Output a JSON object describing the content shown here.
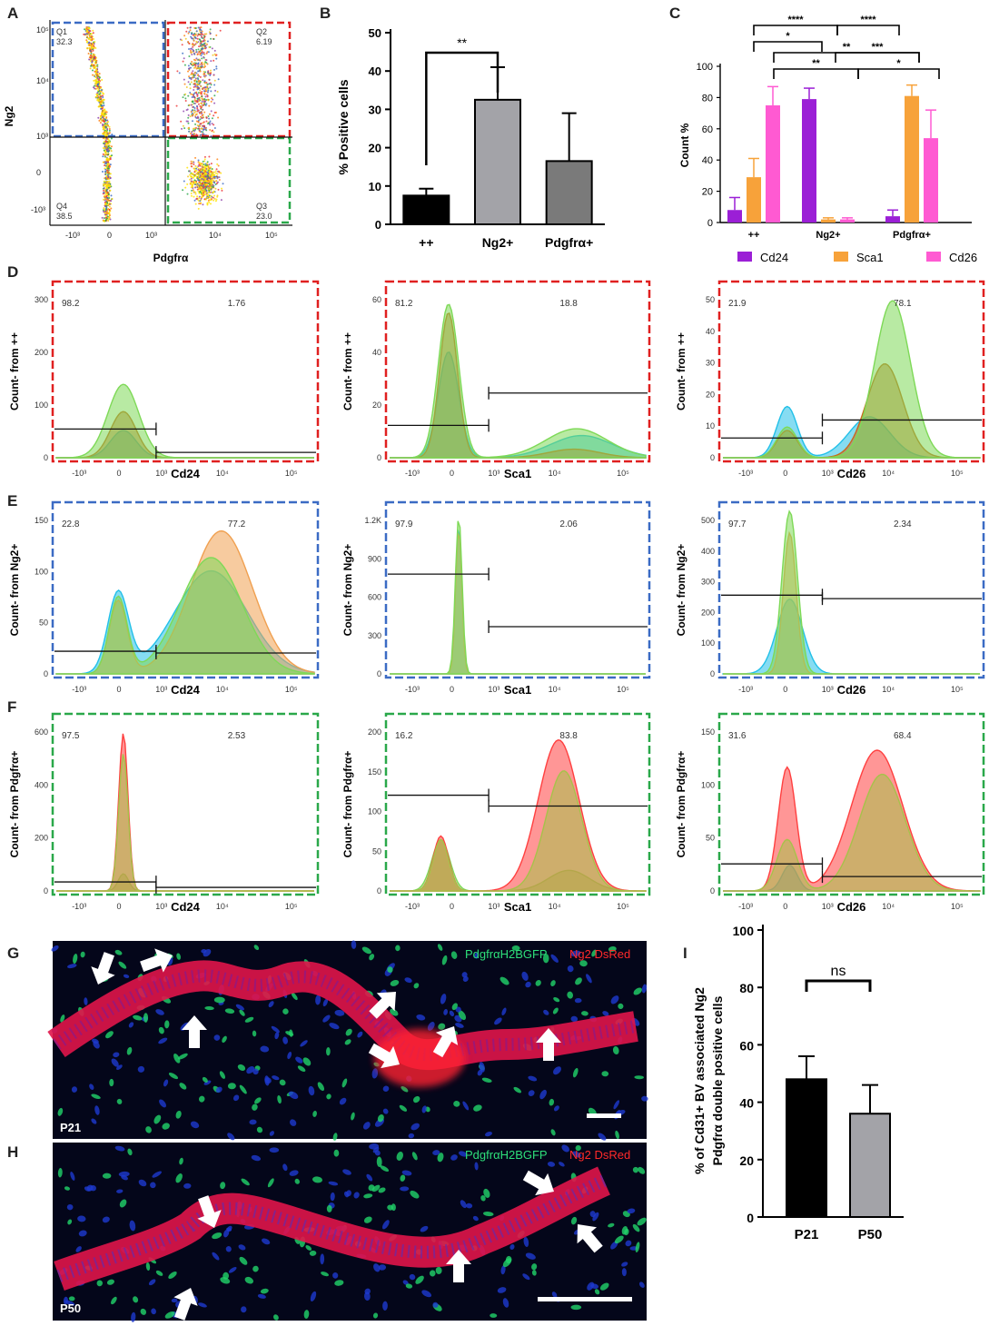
{
  "panel_letters": {
    "A": "A",
    "B": "B",
    "C": "C",
    "D": "D",
    "E": "E",
    "F": "F",
    "G": "G",
    "H": "H",
    "I": "I"
  },
  "chart_data": [
    {
      "id": "A",
      "type": "scatter",
      "xlabel": "Pdgfrα",
      "ylabel": "Ng2",
      "x_ticks": [
        "-10³",
        "0",
        "10³",
        "10⁴",
        "10⁵"
      ],
      "y_ticks": [
        "10⁵",
        "10⁴",
        "10³",
        "0",
        "-10³"
      ],
      "quadrants": [
        {
          "name": "Q1",
          "value": "32.3",
          "color": "#3b6bc4"
        },
        {
          "name": "Q2",
          "value": "6.19",
          "color": "#e02020"
        },
        {
          "name": "Q3",
          "value": "23.0",
          "color": "#2aa84a"
        },
        {
          "name": "Q4",
          "value": "38.5",
          "color": ""
        }
      ]
    },
    {
      "id": "B",
      "type": "bar",
      "categories": [
        "++",
        "Ng2+",
        "Pdgfrα+"
      ],
      "values": [
        7.5,
        32.5,
        16.5
      ],
      "errors": [
        1.8,
        8.5,
        12.5
      ],
      "colors": [
        "#000000",
        "#a3a3a8",
        "#7a7a7a"
      ],
      "ylabel": "% Positive cells",
      "ylim": [
        0,
        50
      ],
      "yticks": [
        0,
        10,
        20,
        30,
        40,
        50
      ],
      "significance": [
        {
          "from": 0,
          "to": 1,
          "label": "**"
        }
      ]
    },
    {
      "id": "C",
      "type": "bar",
      "categories": [
        "++",
        "Ng2+",
        "Pdgfrα+"
      ],
      "series": [
        {
          "name": "Cd24",
          "color": "#9b1fd6",
          "values": [
            8,
            79,
            4
          ],
          "errors": [
            8,
            7,
            4
          ]
        },
        {
          "name": "Sca1",
          "color": "#f7a23a",
          "values": [
            29,
            2,
            81
          ],
          "errors": [
            12,
            1,
            7
          ]
        },
        {
          "name": "Cd26",
          "color": "#ff5ad2",
          "values": [
            75,
            2,
            54
          ],
          "errors": [
            12,
            1,
            18
          ]
        }
      ],
      "ylabel": "Count %",
      "ylim": [
        0,
        100
      ],
      "yticks": [
        0,
        20,
        40,
        60,
        80,
        100
      ],
      "significance": [
        {
          "from": [
            0,
            0
          ],
          "to": [
            1,
            0
          ],
          "label": "****"
        },
        {
          "from": [
            1,
            0
          ],
          "to": [
            2,
            0
          ],
          "label": "****"
        },
        {
          "from": [
            0,
            1
          ],
          "to": [
            1,
            1
          ],
          "label": "*"
        },
        {
          "from": [
            0,
            2
          ],
          "to": [
            2,
            1
          ],
          "label": "**"
        },
        {
          "from": [
            1,
            0
          ],
          "to": [
            2,
            2
          ],
          "label": "***"
        },
        {
          "from": [
            0,
            2
          ],
          "to": [
            1,
            2
          ],
          "label": "**"
        },
        {
          "from": [
            1,
            1
          ],
          "to": [
            2,
            2
          ],
          "label": "*"
        }
      ]
    },
    {
      "id": "D-F",
      "type": "histogram-grid",
      "x_ticks": [
        "-10³",
        "0",
        "10³",
        "10⁴",
        "10⁵"
      ],
      "rows": [
        {
          "row": "D",
          "border": "#e02020",
          "ylabel": "Count- from ++",
          "panels": [
            {
              "xlabel": "Cd24",
              "left": "98.2",
              "right": "1.76",
              "yticks": [
                "300",
                "200",
                "100",
                "0"
              ]
            },
            {
              "xlabel": "Sca1",
              "left": "81.2",
              "right": "18.8",
              "yticks": [
                "60",
                "40",
                "20",
                "0"
              ]
            },
            {
              "xlabel": "Cd26",
              "left": "21.9",
              "right": "78.1",
              "yticks": [
                "50",
                "40",
                "30",
                "20",
                "10",
                "0"
              ]
            }
          ]
        },
        {
          "row": "E",
          "border": "#3b6bc4",
          "ylabel": "Count- from Ng2+",
          "panels": [
            {
              "xlabel": "Cd24",
              "left": "22.8",
              "right": "77.2",
              "yticks": [
                "150",
                "100",
                "50",
                "0"
              ]
            },
            {
              "xlabel": "Sca1",
              "left": "97.9",
              "right": "2.06",
              "yticks": [
                "1.2K",
                "900",
                "600",
                "300",
                "0"
              ]
            },
            {
              "xlabel": "Cd26",
              "left": "97.7",
              "right": "2.34",
              "yticks": [
                "500",
                "400",
                "300",
                "200",
                "100",
                "0"
              ]
            }
          ]
        },
        {
          "row": "F",
          "border": "#2aa84a",
          "ylabel": "Count- from Pdgfrα+",
          "panels": [
            {
              "xlabel": "Cd24",
              "left": "97.5",
              "right": "2.53",
              "yticks": [
                "600",
                "400",
                "200",
                "0"
              ]
            },
            {
              "xlabel": "Sca1",
              "left": "16.2",
              "right": "83.8",
              "yticks": [
                "200",
                "150",
                "100",
                "50",
                "0"
              ]
            },
            {
              "xlabel": "Cd26",
              "left": "31.6",
              "right": "68.4",
              "yticks": [
                "150",
                "100",
                "50",
                "0"
              ]
            }
          ]
        }
      ]
    },
    {
      "id": "I",
      "type": "bar",
      "categories": [
        "P21",
        "P50"
      ],
      "values": [
        48,
        36
      ],
      "errors": [
        8,
        10
      ],
      "colors": [
        "#000000",
        "#a3a3a8"
      ],
      "ylabel_lines": [
        "% of Cd31+ BV associated Ng2",
        "Pdgfrα double positive cells"
      ],
      "ylim": [
        0,
        100
      ],
      "yticks": [
        0,
        20,
        40,
        60,
        80,
        100
      ],
      "significance": [
        {
          "from": 0,
          "to": 1,
          "label": "ns"
        }
      ]
    }
  ],
  "micrographs": {
    "G": {
      "age": "P21",
      "legend_green": "PdgfrαH2BGFP",
      "legend_red": "Ng2 DsRed"
    },
    "H": {
      "age": "P50",
      "legend_green": "PdgfrαH2BGFP",
      "legend_red": "Ng2 DsRed"
    }
  },
  "colors": {
    "ink": "#1a1a1a",
    "green": "#2ee07a",
    "red": "#ff2a2a"
  }
}
